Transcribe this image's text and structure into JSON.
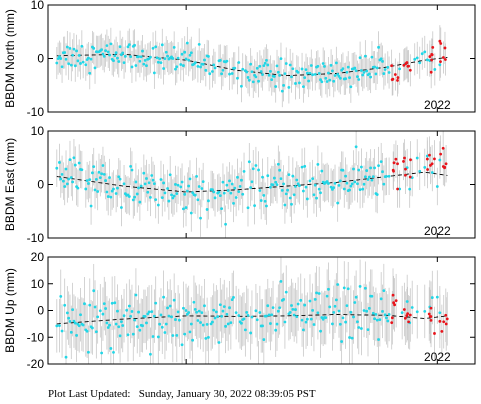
{
  "footer": {
    "label": "Plot Last Updated:",
    "value": "Sunday, January 30, 2022 08:39:05 PST"
  },
  "colors": {
    "points": "#22d6e6",
    "recent_points": "#e8141b",
    "error_bars": "#c8c8c8",
    "trend": "#000000"
  },
  "chart_data": [
    {
      "type": "scatter",
      "ylabel": "BBDM North (mm)",
      "ylim": [
        -10,
        10
      ],
      "yticks": [
        -10,
        0,
        10
      ],
      "xlim": [
        2018.9,
        2022.3
      ],
      "xticks": [
        2020.0,
        2022.0
      ],
      "xticklabels": [
        "",
        "2022"
      ],
      "error_bar_mm": 3,
      "trend": {
        "x": [
          2018.97,
          2019.5,
          2020.0,
          2020.4,
          2020.8,
          2021.2,
          2021.6,
          2021.9,
          2022.08
        ],
        "y": [
          0.5,
          0.8,
          -0.3,
          -2.2,
          -3.2,
          -2.8,
          -1.6,
          -0.3,
          0.2
        ]
      },
      "noise": 1.3,
      "recent": {
        "x": [
          2021.66,
          2021.76,
          2021.95,
          2022.05
        ],
        "y": [
          -2.5,
          -1.8,
          0.1,
          0.4
        ]
      }
    },
    {
      "type": "scatter",
      "ylabel": "BBDM East (mm)",
      "ylim": [
        -10,
        10
      ],
      "yticks": [
        -10,
        0,
        10
      ],
      "xlim": [
        2018.9,
        2022.3
      ],
      "xticks": [
        2020.0,
        2022.0
      ],
      "xticklabels": [
        "",
        "2022"
      ],
      "error_bar_mm": 3.5,
      "trend": {
        "x": [
          2018.97,
          2019.5,
          2020.0,
          2020.4,
          2020.8,
          2021.2,
          2021.6,
          2021.9,
          2022.08
        ],
        "y": [
          1.5,
          -0.3,
          -1.4,
          -1.0,
          -0.3,
          0.4,
          1.5,
          2.3,
          1.7
        ]
      },
      "noise": 1.9,
      "recent": {
        "x": [
          2021.66,
          2021.76,
          2021.95,
          2022.05
        ],
        "y": [
          2.5,
          3.0,
          3.8,
          3.9
        ]
      }
    },
    {
      "type": "scatter",
      "ylabel": "BBDM Up (mm)",
      "ylim": [
        -20,
        20
      ],
      "yticks": [
        -20,
        -10,
        0,
        10,
        20
      ],
      "xlim": [
        2018.9,
        2022.3
      ],
      "xticks": [
        2020.0,
        2022.0
      ],
      "xticklabels": [
        "",
        "2022"
      ],
      "error_bar_mm": 10,
      "trend": {
        "x": [
          2018.97,
          2019.5,
          2020.0,
          2020.4,
          2020.8,
          2021.2,
          2021.6,
          2021.9,
          2022.08
        ],
        "y": [
          -5.0,
          -3.2,
          -2.0,
          -2.2,
          -2.0,
          -1.5,
          -1.8,
          -3.0,
          -2.0
        ]
      },
      "noise": 4.8,
      "recent": {
        "x": [
          2021.66,
          2021.76,
          2021.95,
          2022.05
        ],
        "y": [
          -1.5,
          -2.0,
          -3.5,
          -4.0
        ]
      }
    }
  ]
}
